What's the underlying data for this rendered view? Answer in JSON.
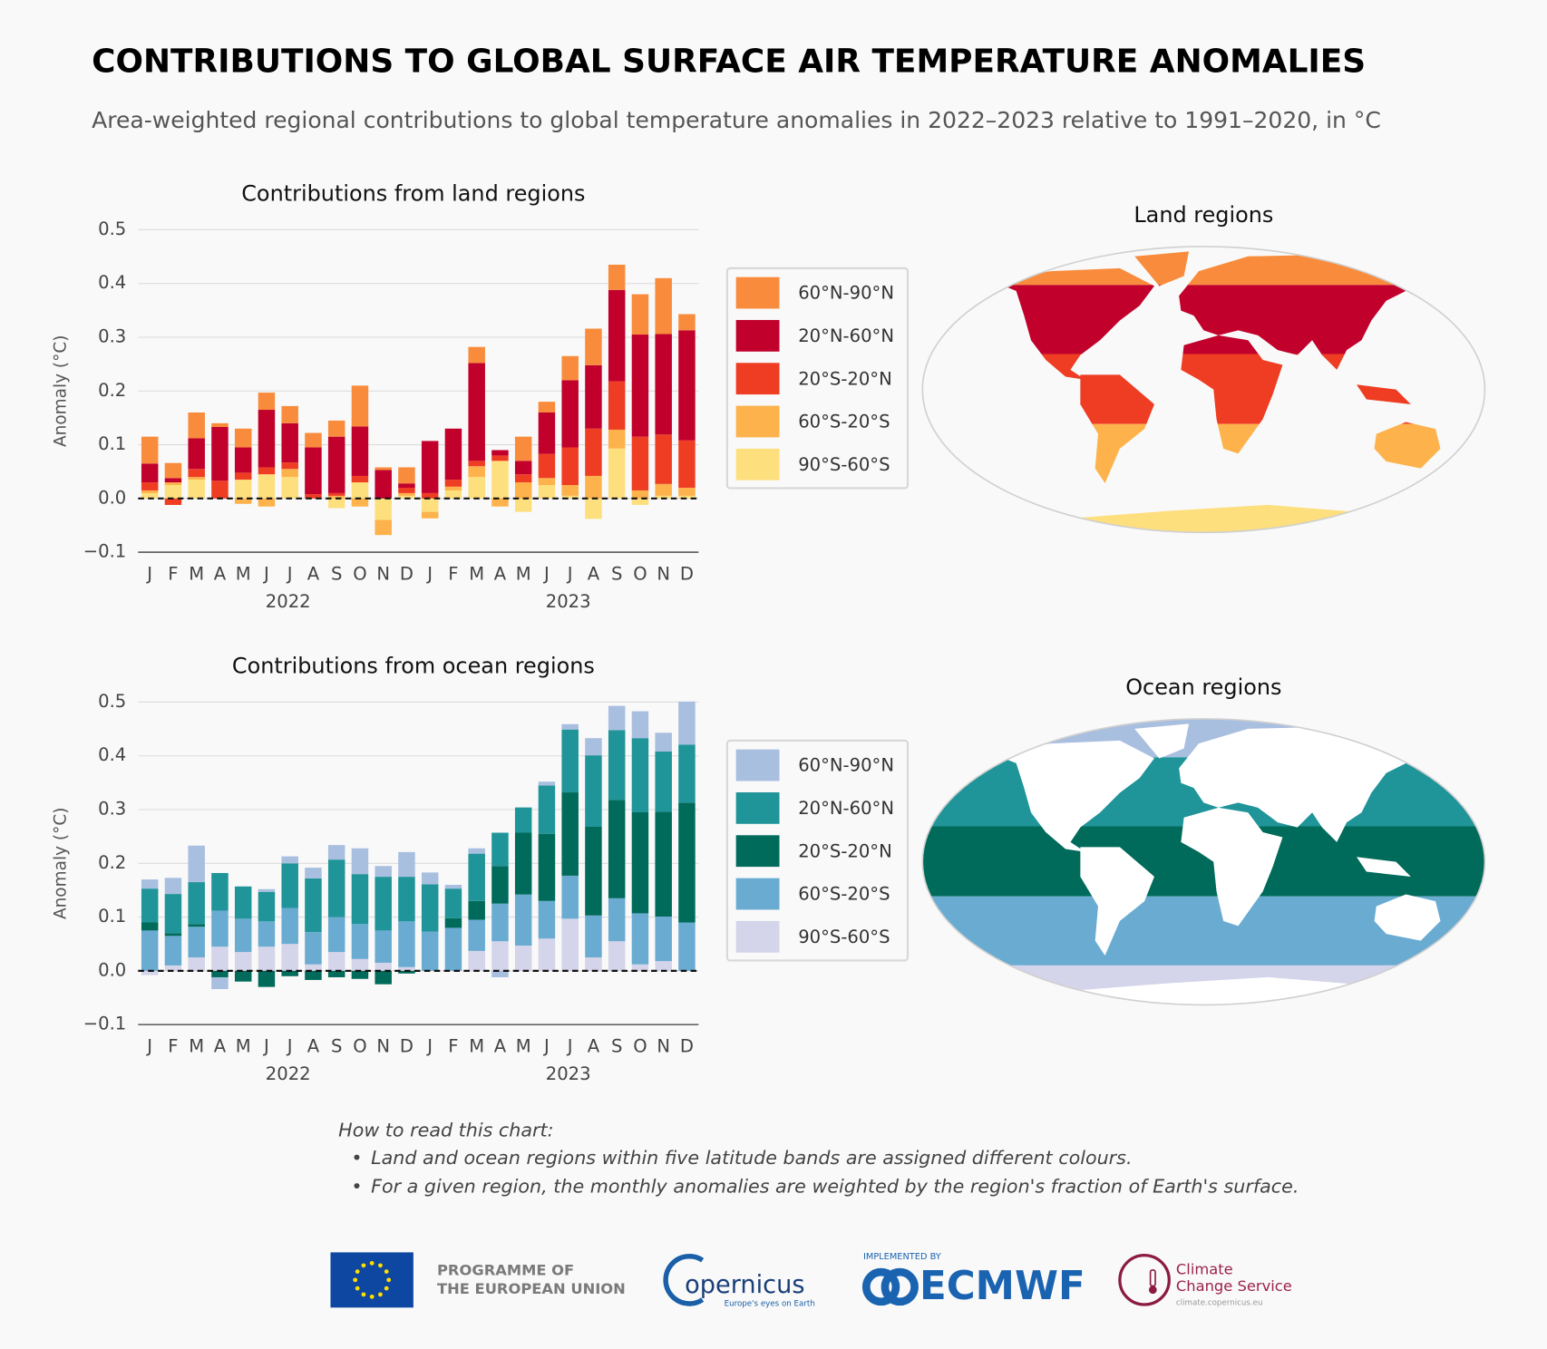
{
  "header": {
    "title": "CONTRIBUTIONS TO GLOBAL SURFACE AIR TEMPERATURE ANOMALIES",
    "subtitle": "Area-weighted regional contributions to global temperature anomalies in 2022–2023 relative to 1991–2020, in °C"
  },
  "chart_data": [
    {
      "type": "bar",
      "stacked": true,
      "title": "Contributions from land regions",
      "y_label": "Anomaly (°C)",
      "categories": [
        "J",
        "F",
        "M",
        "A",
        "M",
        "J",
        "J",
        "A",
        "S",
        "O",
        "N",
        "D",
        "J",
        "F",
        "M",
        "A",
        "M",
        "J",
        "J",
        "A",
        "S",
        "O",
        "N",
        "D"
      ],
      "x_group_labels": [
        "2022",
        "2023"
      ],
      "ylim": [
        -0.1,
        0.5
      ],
      "yticks": [
        {
          "value": -0.1,
          "label": "−0.1"
        },
        {
          "value": 0,
          "label": "0.0"
        },
        0.1,
        0.2,
        0.3,
        0.4,
        0.5
      ],
      "grid": true,
      "series": [
        {
          "name": "60°N-90°N",
          "color": "#f98c3c",
          "values": [
            0.05,
            0.028,
            0.048,
            0.007,
            0.035,
            0.032,
            0.032,
            0.027,
            0.03,
            0.076,
            0.005,
            0.03,
            0,
            0,
            0.03,
            0,
            0.045,
            0.02,
            0.045,
            0.068,
            0.047,
            0.075,
            0.104,
            0.03
          ]
        },
        {
          "name": "20°N-60°N",
          "color": "#c1002b",
          "values": [
            0.035,
            0.008,
            0.057,
            0.1,
            0.047,
            0.107,
            0.073,
            0.087,
            0.105,
            0.092,
            0.053,
            0.008,
            0.097,
            0.095,
            0.182,
            0.01,
            0.025,
            0.077,
            0.125,
            0.118,
            0.17,
            0.19,
            0.187,
            0.205
          ]
        },
        {
          "name": "20°S-20°N",
          "color": "#ee3d23",
          "values": [
            0.015,
            -0.012,
            0.015,
            0.033,
            0.013,
            0.013,
            0.012,
            0.008,
            0.005,
            0.012,
            0,
            0.01,
            0.01,
            0.013,
            0.01,
            0.01,
            0.015,
            0.045,
            0.07,
            0.088,
            0.09,
            0.1,
            0.092,
            0.088
          ]
        },
        {
          "name": "60°S-20°S",
          "color": "#fdb24b",
          "values": [
            0.005,
            0.005,
            0.005,
            0,
            -0.01,
            -0.015,
            0.015,
            0,
            0.005,
            -0.015,
            -0.028,
            0.005,
            -0.012,
            0.007,
            0.02,
            -0.015,
            0.03,
            0.013,
            0.02,
            0.042,
            0.035,
            0.015,
            0.022,
            0.015
          ]
        },
        {
          "name": "90°S-60°S",
          "color": "#fedf7d",
          "values": [
            0.01,
            0.025,
            0.035,
            0,
            0.035,
            0.045,
            0.04,
            0,
            -0.018,
            0.03,
            -0.04,
            0.005,
            -0.025,
            0.015,
            0.04,
            0.07,
            -0.025,
            0.025,
            0.005,
            -0.038,
            0.093,
            -0.012,
            0.005,
            0.005
          ]
        }
      ],
      "map_title": "Land regions",
      "map_kind": "land"
    },
    {
      "type": "bar",
      "stacked": true,
      "title": "Contributions from ocean regions",
      "y_label": "Anomaly (°C)",
      "categories": [
        "J",
        "F",
        "M",
        "A",
        "M",
        "J",
        "J",
        "A",
        "S",
        "O",
        "N",
        "D",
        "J",
        "F",
        "M",
        "A",
        "M",
        "J",
        "J",
        "A",
        "S",
        "O",
        "N",
        "D"
      ],
      "x_group_labels": [
        "2022",
        "2023"
      ],
      "ylim": [
        -0.1,
        0.5
      ],
      "yticks": [
        {
          "value": -0.1,
          "label": "−0.1"
        },
        {
          "value": 0,
          "label": "0.0"
        },
        0.1,
        0.2,
        0.3,
        0.4,
        0.5
      ],
      "grid": true,
      "series": [
        {
          "name": "60°N-90°N",
          "color": "#a9bfe0",
          "values": [
            0.017,
            0.03,
            0.068,
            -0.022,
            0,
            0.005,
            0.013,
            0.02,
            0.027,
            0.048,
            0.02,
            0.046,
            0.022,
            0.007,
            0.01,
            -0.012,
            0,
            0.007,
            0.01,
            0.032,
            0.045,
            0.05,
            0.035,
            0.08
          ]
        },
        {
          "name": "20°N-60°N",
          "color": "#1f9499",
          "values": [
            0.063,
            0.073,
            0.078,
            0.07,
            0.06,
            0.055,
            0.083,
            0.1,
            0.107,
            0.093,
            0.1,
            0.083,
            0.088,
            0.055,
            0.088,
            0.062,
            0.047,
            0.09,
            0.117,
            0.133,
            0.13,
            0.138,
            0.112,
            0.108
          ]
        },
        {
          "name": "20°S-20°N",
          "color": "#006b5a",
          "values": [
            0.015,
            0.005,
            0.005,
            -0.012,
            -0.02,
            -0.03,
            -0.01,
            -0.017,
            -0.012,
            -0.015,
            -0.025,
            -0.005,
            0,
            0.018,
            0.035,
            0.07,
            0.115,
            0.125,
            0.155,
            0.165,
            0.183,
            0.188,
            0.195,
            0.223
          ]
        },
        {
          "name": "60°S-20°S",
          "color": "#6aabd2",
          "values": [
            0.075,
            0.055,
            0.057,
            0.067,
            0.062,
            0.047,
            0.067,
            0.06,
            0.065,
            0.065,
            0.06,
            0.085,
            0.073,
            0.08,
            0.058,
            0.07,
            0.095,
            0.07,
            0.08,
            0.078,
            0.08,
            0.095,
            0.083,
            0.09
          ]
        },
        {
          "name": "90°S-60°S",
          "color": "#d4d4ea",
          "values": [
            -0.008,
            0.01,
            0.025,
            0.045,
            0.035,
            0.045,
            0.05,
            0.012,
            0.035,
            0.022,
            0.015,
            0.007,
            0,
            0,
            0.037,
            0.055,
            0.047,
            0.06,
            0.097,
            0.025,
            0.055,
            0.012,
            0.018,
            0
          ]
        }
      ],
      "map_title": "Ocean regions",
      "map_kind": "ocean"
    }
  ],
  "notes": {
    "heading": "How to read this chart:",
    "items": [
      "Land and ocean regions within five latitude bands are assigned different colours.",
      "For a given region, the monthly anomalies are weighted by the region's fraction of Earth's surface."
    ]
  },
  "footer": {
    "eu": [
      "PROGRAMME OF",
      "THE EUROPEAN UNION"
    ],
    "copernicus": "opernicus",
    "copernicus_tagline": "Europe's eyes on Earth",
    "implemented_by": "IMPLEMENTED BY",
    "ecmwf": "ECMWF",
    "c3s": [
      "Climate",
      "Change Service"
    ],
    "c3s_url": "climate.copernicus.eu"
  }
}
